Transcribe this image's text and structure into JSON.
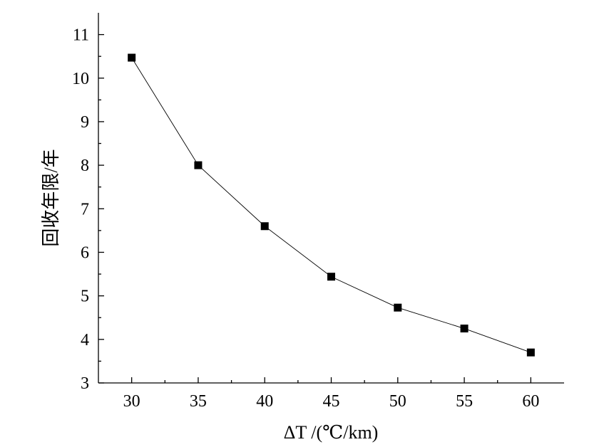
{
  "chart_data": {
    "type": "line",
    "title": "",
    "xlabel": "ΔT /(℃/km)",
    "ylabel": "回收年限/年",
    "x": [
      30,
      35,
      40,
      45,
      50,
      55,
      60
    ],
    "series": [
      {
        "values": [
          10.47,
          8.0,
          6.6,
          5.44,
          4.73,
          4.25,
          3.7
        ]
      }
    ],
    "xlim": [
      27.5,
      62.5
    ],
    "ylim": [
      3,
      11.5
    ],
    "xticks": [
      30,
      35,
      40,
      45,
      50,
      55,
      60
    ],
    "yticks": [
      3,
      4,
      5,
      6,
      7,
      8,
      9,
      10,
      11
    ],
    "grid": false,
    "legend": "none",
    "marker": "square",
    "line_color": "#000000"
  }
}
